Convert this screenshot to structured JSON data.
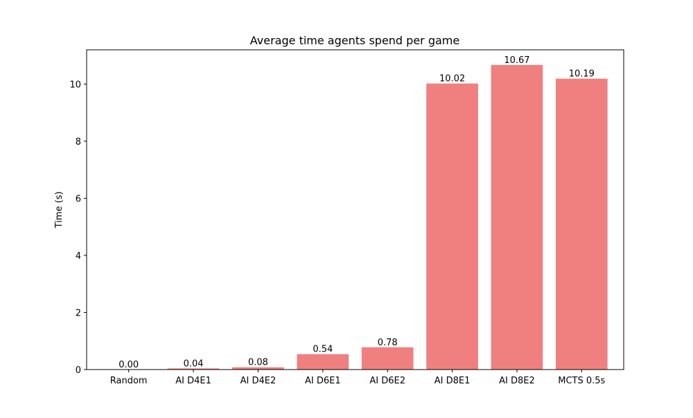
{
  "chart_data": {
    "type": "bar",
    "title": "Average time agents spend per game",
    "xlabel": "",
    "ylabel": "Time (s)",
    "categories": [
      "Random",
      "AI D4E1",
      "AI D4E2",
      "AI D6E1",
      "AI D6E2",
      "AI D8E1",
      "AI D8E2",
      "MCTS 0.5s"
    ],
    "values": [
      0.0,
      0.04,
      0.08,
      0.54,
      0.78,
      10.02,
      10.67,
      10.19
    ],
    "value_labels": [
      "0.00",
      "0.04",
      "0.08",
      "0.54",
      "0.78",
      "10.02",
      "10.67",
      "10.19"
    ],
    "ylim": [
      0,
      11.2
    ],
    "yticks": [
      0,
      2,
      4,
      6,
      8,
      10
    ],
    "grid": false,
    "bar_color": "#f08080"
  }
}
